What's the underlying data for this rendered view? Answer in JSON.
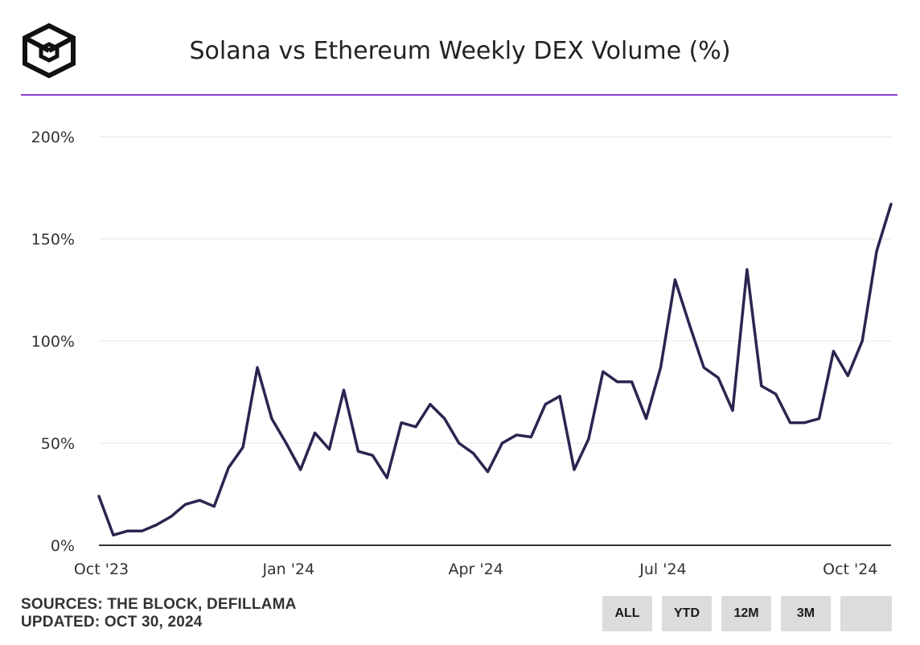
{
  "header": {
    "title": "Solana vs Ethereum Weekly DEX Volume (%)",
    "logo_icon": "the-block-cube-icon"
  },
  "colors": {
    "line": "#2b2550",
    "accent_rule": "#8a3fd1",
    "grid": "#e6e6e6",
    "axis": "#333333",
    "button_bg": "#dcdcdc"
  },
  "chart_data": {
    "type": "line",
    "title": "Solana vs Ethereum Weekly DEX Volume (%)",
    "xlabel": "",
    "ylabel": "",
    "ylim": [
      0,
      200
    ],
    "yticks": [
      0,
      50,
      100,
      150,
      200
    ],
    "ytick_labels": [
      "0%",
      "50%",
      "100%",
      "150%",
      "200%"
    ],
    "grid": true,
    "xticks": [
      {
        "label": "Oct '23",
        "week_index": 0
      },
      {
        "label": "Jan '24",
        "week_index": 13
      },
      {
        "label": "Apr '24",
        "week_index": 26
      },
      {
        "label": "Jul '24",
        "week_index": 39
      },
      {
        "label": "Oct '24",
        "week_index": 52
      }
    ],
    "series": [
      {
        "name": "Solana vs Ethereum Weekly DEX Volume (%)",
        "values": [
          24,
          5,
          7,
          7,
          10,
          14,
          20,
          22,
          19,
          38,
          48,
          87,
          62,
          50,
          37,
          55,
          47,
          76,
          46,
          44,
          33,
          60,
          58,
          69,
          62,
          50,
          45,
          36,
          50,
          54,
          53,
          69,
          73,
          37,
          52,
          85,
          80,
          80,
          62,
          87,
          130,
          108,
          87,
          82,
          66,
          135,
          78,
          74,
          60,
          60,
          62,
          95,
          83,
          100,
          144,
          167
        ]
      }
    ]
  },
  "footer": {
    "sources": "SOURCES: THE BLOCK, DEFILLAMA",
    "updated": "UPDATED: OCT 30, 2024"
  },
  "range_buttons": [
    {
      "label": "ALL"
    },
    {
      "label": "YTD"
    },
    {
      "label": "12M"
    },
    {
      "label": "3M"
    },
    {
      "label": ""
    }
  ]
}
